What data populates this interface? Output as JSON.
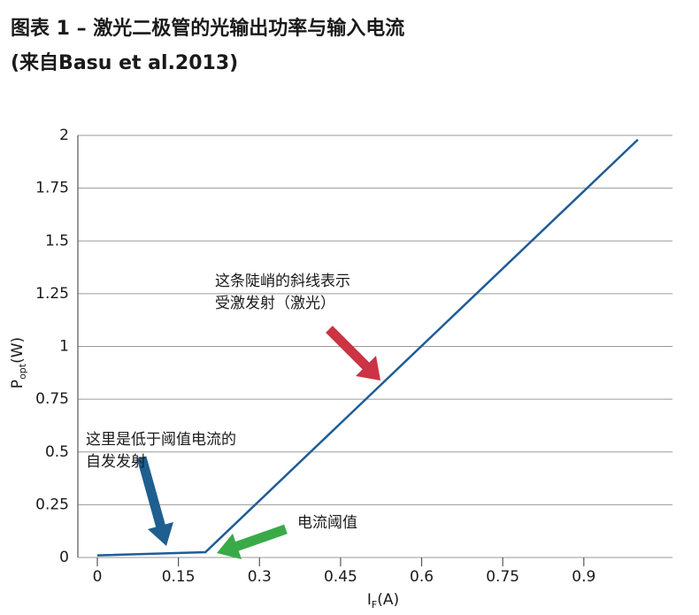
{
  "chart_data": {
    "type": "line",
    "title": [
      "图表 1 – 激光二极管的光输出功率与输入电流",
      "(来自Basu et al.2013)"
    ],
    "xlabel": "I",
    "xlabel_sub": "F",
    "xlabel_unit": "(A)",
    "ylabel": "P",
    "ylabel_sub": "opt",
    "ylabel_unit": "(W)",
    "series": [
      {
        "x": [
          0,
          0.2,
          1.0
        ],
        "values": [
          0.01,
          0.025,
          1.98
        ],
        "color": "#1f5c96"
      }
    ],
    "xlim": [
      -0.036,
      1.064
    ],
    "xticks": [
      0,
      0.15,
      0.3,
      0.45,
      0.6,
      0.75,
      0.9
    ],
    "ylim": [
      0,
      2
    ],
    "yticks": [
      0,
      0.25,
      0.5,
      0.75,
      1,
      1.25,
      1.5,
      1.75,
      2
    ],
    "grid": true,
    "annotations": [
      {
        "lines": [
          "这条陡峭的斜线表示",
          "受激发射（激光）"
        ]
      },
      {
        "lines": [
          "这里是低于阈值电流的",
          "自发发射"
        ]
      },
      {
        "lines": [
          "电流阈值"
        ]
      }
    ]
  }
}
